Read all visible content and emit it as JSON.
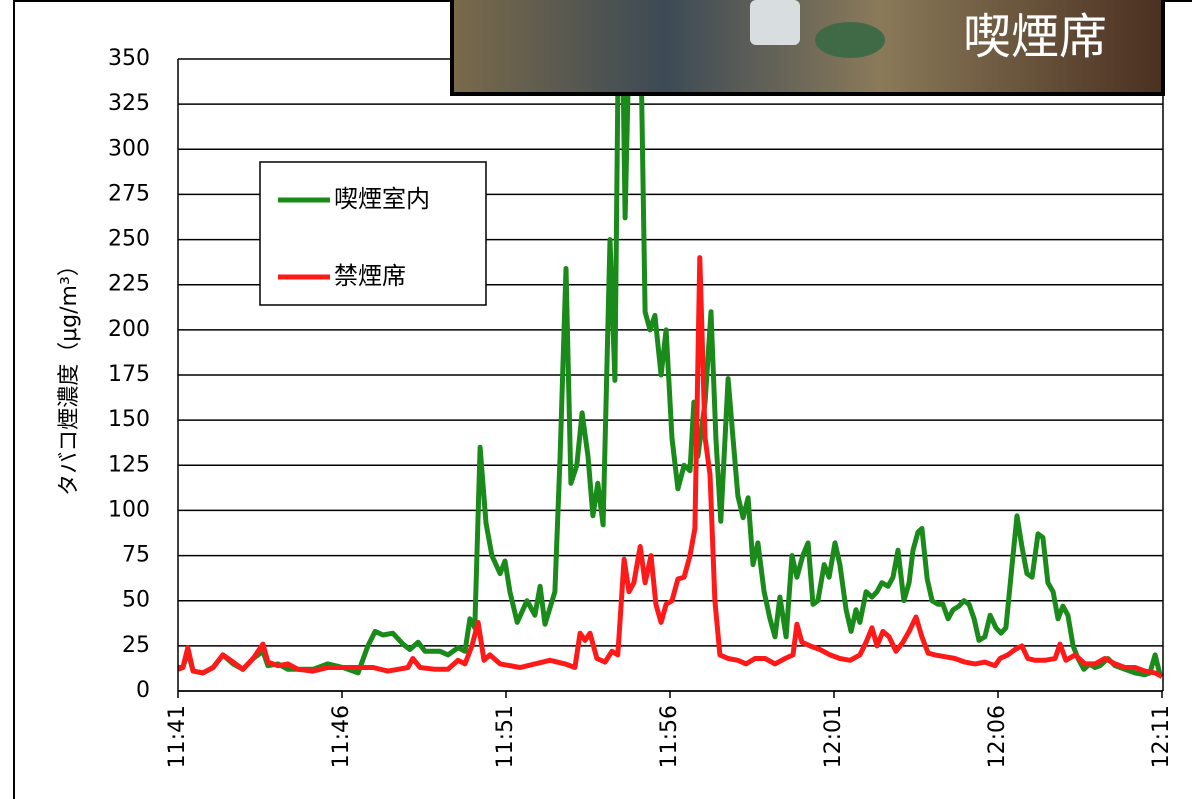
{
  "chart_data": {
    "type": "line",
    "annotation": "喫煙席",
    "y_label": "タバコ煙濃度（μg/m³）",
    "xlim": [
      701,
      731
    ],
    "xticks": [
      {
        "value": 701,
        "label": "11:41"
      },
      {
        "value": 706,
        "label": "11:46"
      },
      {
        "value": 711,
        "label": "11:51"
      },
      {
        "value": 716,
        "label": "11:56"
      },
      {
        "value": 721,
        "label": "12:01"
      },
      {
        "value": 726,
        "label": "12:06"
      },
      {
        "value": 731,
        "label": "12:11"
      }
    ],
    "ylim": [
      0,
      350
    ],
    "yticks": [
      0,
      25,
      50,
      75,
      100,
      125,
      150,
      175,
      200,
      225,
      250,
      275,
      300,
      325,
      350
    ],
    "grid": true,
    "series": [
      {
        "name": "喫煙室内",
        "color": "#1a8a1a",
        "x": [
          701.0,
          701.15,
          701.3,
          701.46,
          701.76,
          702.07,
          702.37,
          702.68,
          702.98,
          703.29,
          703.59,
          703.74,
          704.05,
          704.35,
          704.66,
          705.12,
          705.57,
          706.03,
          706.49,
          706.79,
          707.01,
          707.25,
          707.55,
          707.86,
          708.07,
          708.32,
          708.53,
          708.99,
          709.23,
          709.54,
          709.75,
          709.9,
          710.05,
          710.21,
          710.39,
          710.57,
          710.82,
          710.97,
          711.12,
          711.34,
          711.64,
          711.88,
          712.04,
          712.19,
          712.49,
          712.65,
          712.83,
          712.98,
          713.16,
          713.32,
          713.5,
          713.65,
          713.8,
          713.96,
          714.17,
          714.32,
          714.41,
          714.54,
          714.63,
          714.78,
          715.09,
          715.24,
          715.39,
          715.54,
          715.73,
          715.88,
          716.06,
          716.24,
          716.43,
          716.61,
          716.73,
          716.85,
          717.07,
          717.25,
          717.4,
          717.55,
          717.77,
          717.92,
          718.07,
          718.23,
          718.38,
          718.53,
          718.68,
          718.87,
          719.05,
          719.2,
          719.35,
          719.54,
          719.72,
          719.87,
          720.05,
          720.21,
          720.36,
          720.51,
          720.7,
          720.85,
          721.03,
          721.18,
          721.37,
          721.52,
          721.67,
          721.79,
          721.98,
          722.16,
          722.31,
          722.46,
          722.65,
          722.8,
          722.95,
          723.13,
          723.29,
          723.41,
          723.56,
          723.68,
          723.84,
          723.99,
          724.17,
          724.32,
          724.48,
          724.63,
          724.81,
          724.96,
          725.12,
          725.27,
          725.42,
          725.6,
          725.76,
          725.94,
          726.09,
          726.24,
          726.43,
          726.58,
          726.73,
          726.88,
          727.04,
          727.22,
          727.37,
          727.52,
          727.68,
          727.83,
          727.98,
          728.13,
          728.29,
          728.44,
          728.62,
          728.8,
          728.96,
          729.11,
          729.35,
          729.57,
          729.87,
          730.18,
          730.48,
          730.63,
          730.79,
          730.94
        ],
        "values": [
          13,
          13,
          22,
          11,
          10,
          13,
          20,
          15,
          12,
          18,
          22,
          14,
          15,
          12,
          12,
          12,
          15,
          13,
          10,
          25,
          33,
          31,
          32,
          26,
          23,
          27,
          22,
          22,
          20,
          24,
          22,
          40,
          35,
          135,
          93,
          75,
          65,
          72,
          55,
          38,
          50,
          42,
          58,
          37,
          55,
          130,
          234,
          115,
          125,
          154,
          130,
          97,
          115,
          92,
          250,
          172,
          330,
          380,
          262,
          380,
          380,
          210,
          200,
          208,
          175,
          200,
          140,
          112,
          125,
          122,
          160,
          130,
          160,
          210,
          140,
          94,
          173,
          140,
          108,
          96,
          107,
          70,
          82,
          55,
          40,
          30,
          52,
          30,
          75,
          63,
          75,
          82,
          48,
          50,
          70,
          63,
          82,
          70,
          45,
          33,
          45,
          38,
          55,
          52,
          55,
          60,
          58,
          63,
          78,
          50,
          60,
          78,
          88,
          90,
          62,
          50,
          48,
          48,
          40,
          45,
          47,
          50,
          48,
          40,
          28,
          30,
          42,
          35,
          32,
          35,
          70,
          97,
          80,
          65,
          63,
          87,
          85,
          60,
          55,
          40,
          47,
          42,
          25,
          18,
          12,
          15,
          13,
          14,
          18,
          14,
          12,
          10,
          9,
          10,
          20,
          9
        ]
      },
      {
        "name": "禁煙席",
        "color": "#ff1a1a",
        "x": [
          701.0,
          701.15,
          701.3,
          701.46,
          701.76,
          702.07,
          702.37,
          702.68,
          702.98,
          703.29,
          703.59,
          703.74,
          704.05,
          704.35,
          704.66,
          705.12,
          705.57,
          706.03,
          706.49,
          706.95,
          707.4,
          707.71,
          708.01,
          708.16,
          708.38,
          708.84,
          709.23,
          709.54,
          709.75,
          709.96,
          710.15,
          710.33,
          710.51,
          710.82,
          711.43,
          711.88,
          712.34,
          712.8,
          713.1,
          713.26,
          713.41,
          713.56,
          713.77,
          714.02,
          714.23,
          714.41,
          714.6,
          714.75,
          714.9,
          715.09,
          715.24,
          715.42,
          715.57,
          715.73,
          715.88,
          716.06,
          716.24,
          716.43,
          716.61,
          716.76,
          716.91,
          717.07,
          717.22,
          717.37,
          717.52,
          717.77,
          718.07,
          718.32,
          718.59,
          718.9,
          719.2,
          719.51,
          719.75,
          719.87,
          720.02,
          720.27,
          720.57,
          720.88,
          721.18,
          721.49,
          721.79,
          721.98,
          722.16,
          722.31,
          722.49,
          722.68,
          722.89,
          723.1,
          723.29,
          723.5,
          723.68,
          723.87,
          724.08,
          724.38,
          724.69,
          724.99,
          725.3,
          725.6,
          725.91,
          726.06,
          726.3,
          726.52,
          726.73,
          726.91,
          727.13,
          727.43,
          727.74,
          727.89,
          728.07,
          728.35,
          728.65,
          728.96,
          729.26,
          729.57,
          729.87,
          730.18,
          730.48,
          730.79,
          731.0
        ],
        "values": [
          12,
          13,
          24,
          11,
          10,
          13,
          20,
          16,
          12,
          18,
          26,
          16,
          14,
          15,
          12,
          11,
          13,
          13,
          13,
          13,
          11,
          12,
          13,
          18,
          13,
          12,
          12,
          17,
          15,
          25,
          38,
          17,
          20,
          15,
          13,
          15,
          17,
          15,
          13,
          32,
          28,
          32,
          18,
          16,
          22,
          20,
          73,
          55,
          60,
          80,
          60,
          75,
          48,
          38,
          48,
          50,
          62,
          63,
          75,
          90,
          240,
          140,
          120,
          50,
          20,
          18,
          17,
          15,
          18,
          18,
          15,
          18,
          20,
          37,
          27,
          25,
          23,
          20,
          18,
          17,
          20,
          27,
          35,
          25,
          33,
          30,
          22,
          27,
          33,
          41,
          30,
          21,
          20,
          19,
          18,
          16,
          15,
          16,
          14,
          18,
          20,
          23,
          25,
          18,
          17,
          17,
          18,
          26,
          17,
          20,
          15,
          15,
          18,
          15,
          13,
          13,
          11,
          10,
          8
        ]
      }
    ]
  }
}
